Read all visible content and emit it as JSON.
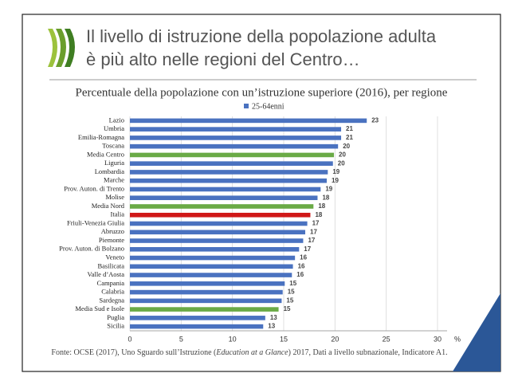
{
  "chart_data": {
    "type": "hbar",
    "title": [
      "Il livello di istruzione della popolazione adulta",
      "è più alto nelle regioni del Centro…"
    ],
    "subtitle": "Percentuale della popolazione con un’istruzione superiore (2016), per regione",
    "categories": [
      "Lazio",
      "Umbria",
      "Emilia-Romagna",
      "Toscana",
      "Media Centro",
      "Liguria",
      "Lombardia",
      "Marche",
      "Prov. Auton. di Trento",
      "Molise",
      "Media Nord",
      "Italia",
      "Friuli-Venezia Giulia",
      "Abruzzo",
      "Piemonte",
      "Prov. Auton. di Bolzano",
      "Veneto",
      "Basilicata",
      "Valle d’Aosta",
      "Campania",
      "Calabria",
      "Sardegna",
      "Media Sud e Isole",
      "Puglia",
      "Sicilia"
    ],
    "series": [
      {
        "name": "25-64enni",
        "color": "#4a72c0",
        "colors": [
          "#4a72c0",
          "#4a72c0",
          "#4a72c0",
          "#4a72c0",
          "#6aaa46",
          "#4a72c0",
          "#4a72c0",
          "#4a72c0",
          "#4a72c0",
          "#4a72c0",
          "#6aaa46",
          "#d01818",
          "#4a72c0",
          "#4a72c0",
          "#4a72c0",
          "#4a72c0",
          "#4a72c0",
          "#4a72c0",
          "#4a72c0",
          "#4a72c0",
          "#4a72c0",
          "#4a72c0",
          "#6aaa46",
          "#4a72c0",
          "#4a72c0"
        ],
        "values": [
          23.1,
          20.6,
          20.6,
          20.3,
          19.9,
          19.8,
          19.3,
          19.2,
          18.6,
          18.3,
          17.9,
          17.6,
          17.3,
          17.1,
          16.9,
          16.5,
          16.1,
          15.9,
          15.8,
          15.1,
          14.9,
          14.8,
          14.5,
          13.2,
          13.0
        ],
        "value_labels": [
          "23",
          "21",
          "21",
          "20",
          "20",
          "20",
          "19",
          "19",
          "19",
          "18",
          "18",
          "18",
          "17",
          "17",
          "17",
          "17",
          "16",
          "16",
          "16",
          "15",
          "15",
          "15",
          "15",
          "13",
          "13"
        ]
      }
    ],
    "xlim": [
      0,
      30
    ],
    "xticks": [
      0,
      5,
      10,
      15,
      20,
      25,
      30
    ],
    "x_unit": "%",
    "grid": true,
    "legend": "top",
    "source": [
      "Fonte: OCSE (2017), Uno Sguardo sull’Istruzione (",
      "Education at a Glance",
      ") 2017, Dati a livello subnazionale, Indicatore A1."
    ]
  }
}
